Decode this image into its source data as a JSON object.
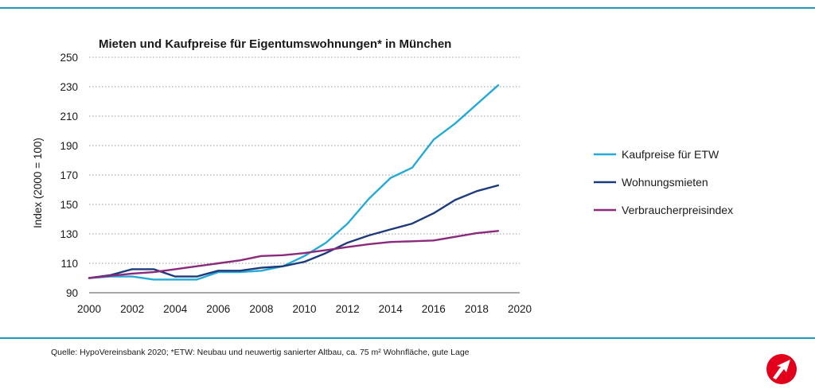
{
  "chart_data": {
    "type": "line",
    "title": "Mieten und Kaufpreise für Eigentumswohnungen* in München",
    "ylabel": "Index (2000 = 100)",
    "xlabel": "",
    "xlim": [
      2000,
      2020
    ],
    "ylim": [
      90,
      250
    ],
    "xticks": [
      "2000",
      "2002",
      "2004",
      "2006",
      "2008",
      "2010",
      "2012",
      "2014",
      "2016",
      "2018",
      "2020"
    ],
    "yticks": [
      "90",
      "110",
      "130",
      "150",
      "170",
      "190",
      "210",
      "230",
      "250"
    ],
    "grid": "horizontal dotted",
    "legend_position": "right",
    "x": [
      2000,
      2001,
      2002,
      2003,
      2004,
      2005,
      2006,
      2007,
      2008,
      2009,
      2010,
      2011,
      2012,
      2013,
      2014,
      2015,
      2016,
      2017,
      2018,
      2019
    ],
    "series": [
      {
        "name": "Kaufpreise für ETW",
        "color": "#25a9d6",
        "values": [
          100,
          101,
          101,
          99,
          99,
          99,
          104,
          104,
          105,
          108,
          115,
          124,
          137,
          154,
          168,
          175,
          194,
          205,
          218,
          231
        ]
      },
      {
        "name": "Wohnungsmieten",
        "color": "#1d3a7c",
        "values": [
          100,
          102,
          106,
          106,
          101,
          101,
          105,
          105,
          107,
          108,
          111,
          117,
          124,
          129,
          133,
          137,
          144,
          153,
          159,
          163
        ]
      },
      {
        "name": "Verbraucherpreisindex",
        "color": "#8b2a7d",
        "values": [
          100,
          101.5,
          103,
          104,
          106,
          108,
          110,
          112,
          115,
          115.5,
          117,
          119,
          121,
          123,
          124.5,
          125,
          125.5,
          128,
          130.5,
          132
        ]
      }
    ]
  },
  "footnote": "Quelle: HypoVereinsbank 2020; *ETW: Neubau und neuwertig sanierter Altbau, ca. 75 m² Wohnfläche, gute Lage",
  "colors": {
    "rule": "#1f9bbf",
    "logo": "#e2001a"
  },
  "logo_icon": "unicredit-logo-icon"
}
